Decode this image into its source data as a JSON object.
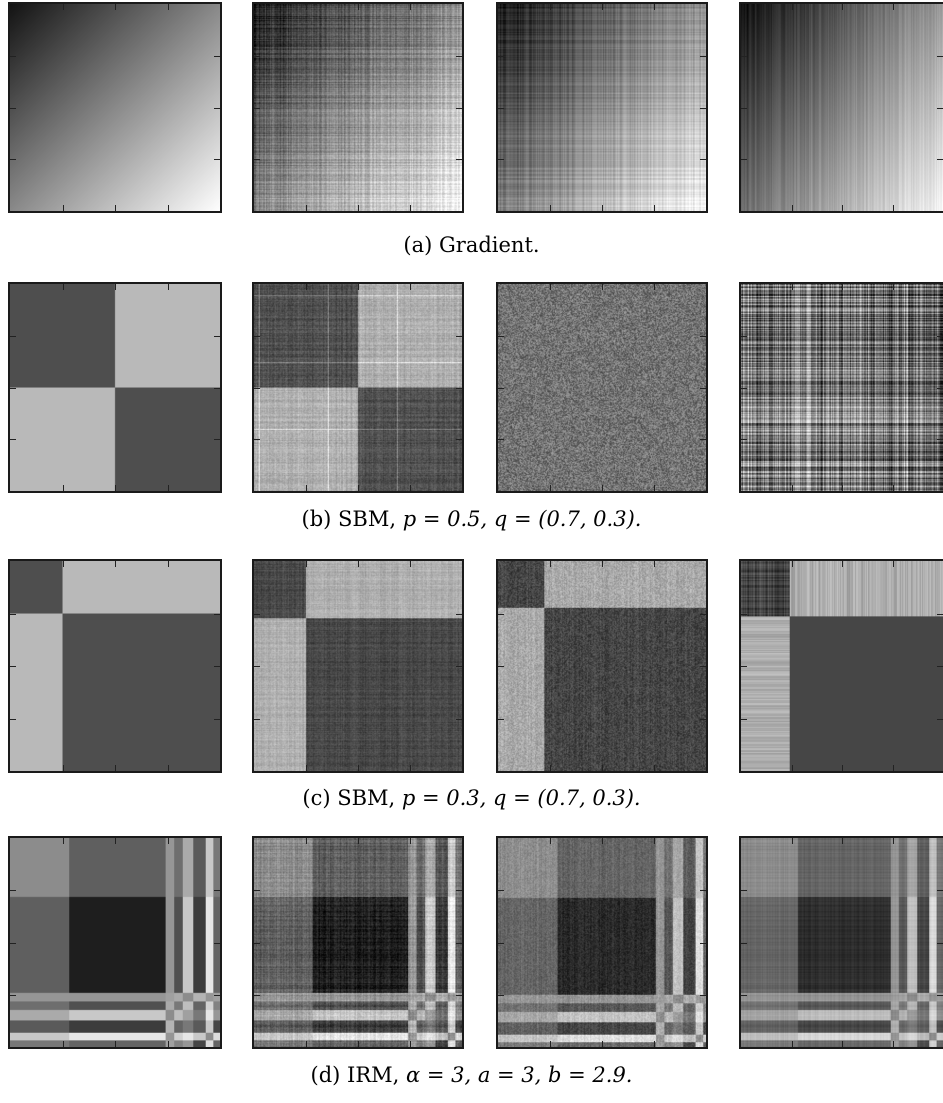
{
  "figure": {
    "rows": [
      {
        "id": "gradient",
        "caption_prefix": "(a) ",
        "caption_text": "Gradient.",
        "caption_math": ""
      },
      {
        "id": "sbm_p05",
        "caption_prefix": "(b) ",
        "caption_text": "SBM, ",
        "caption_math": "p = 0.5, q = (0.7, 0.3)."
      },
      {
        "id": "sbm_p03",
        "caption_prefix": "(c) ",
        "caption_text": "SBM, ",
        "caption_math": "p = 0.3, q = (0.7, 0.3)."
      },
      {
        "id": "irm",
        "caption_prefix": "(d) ",
        "caption_text": "IRM, ",
        "caption_math": "α = 3, a = 3, b = 2.9."
      }
    ]
  }
}
